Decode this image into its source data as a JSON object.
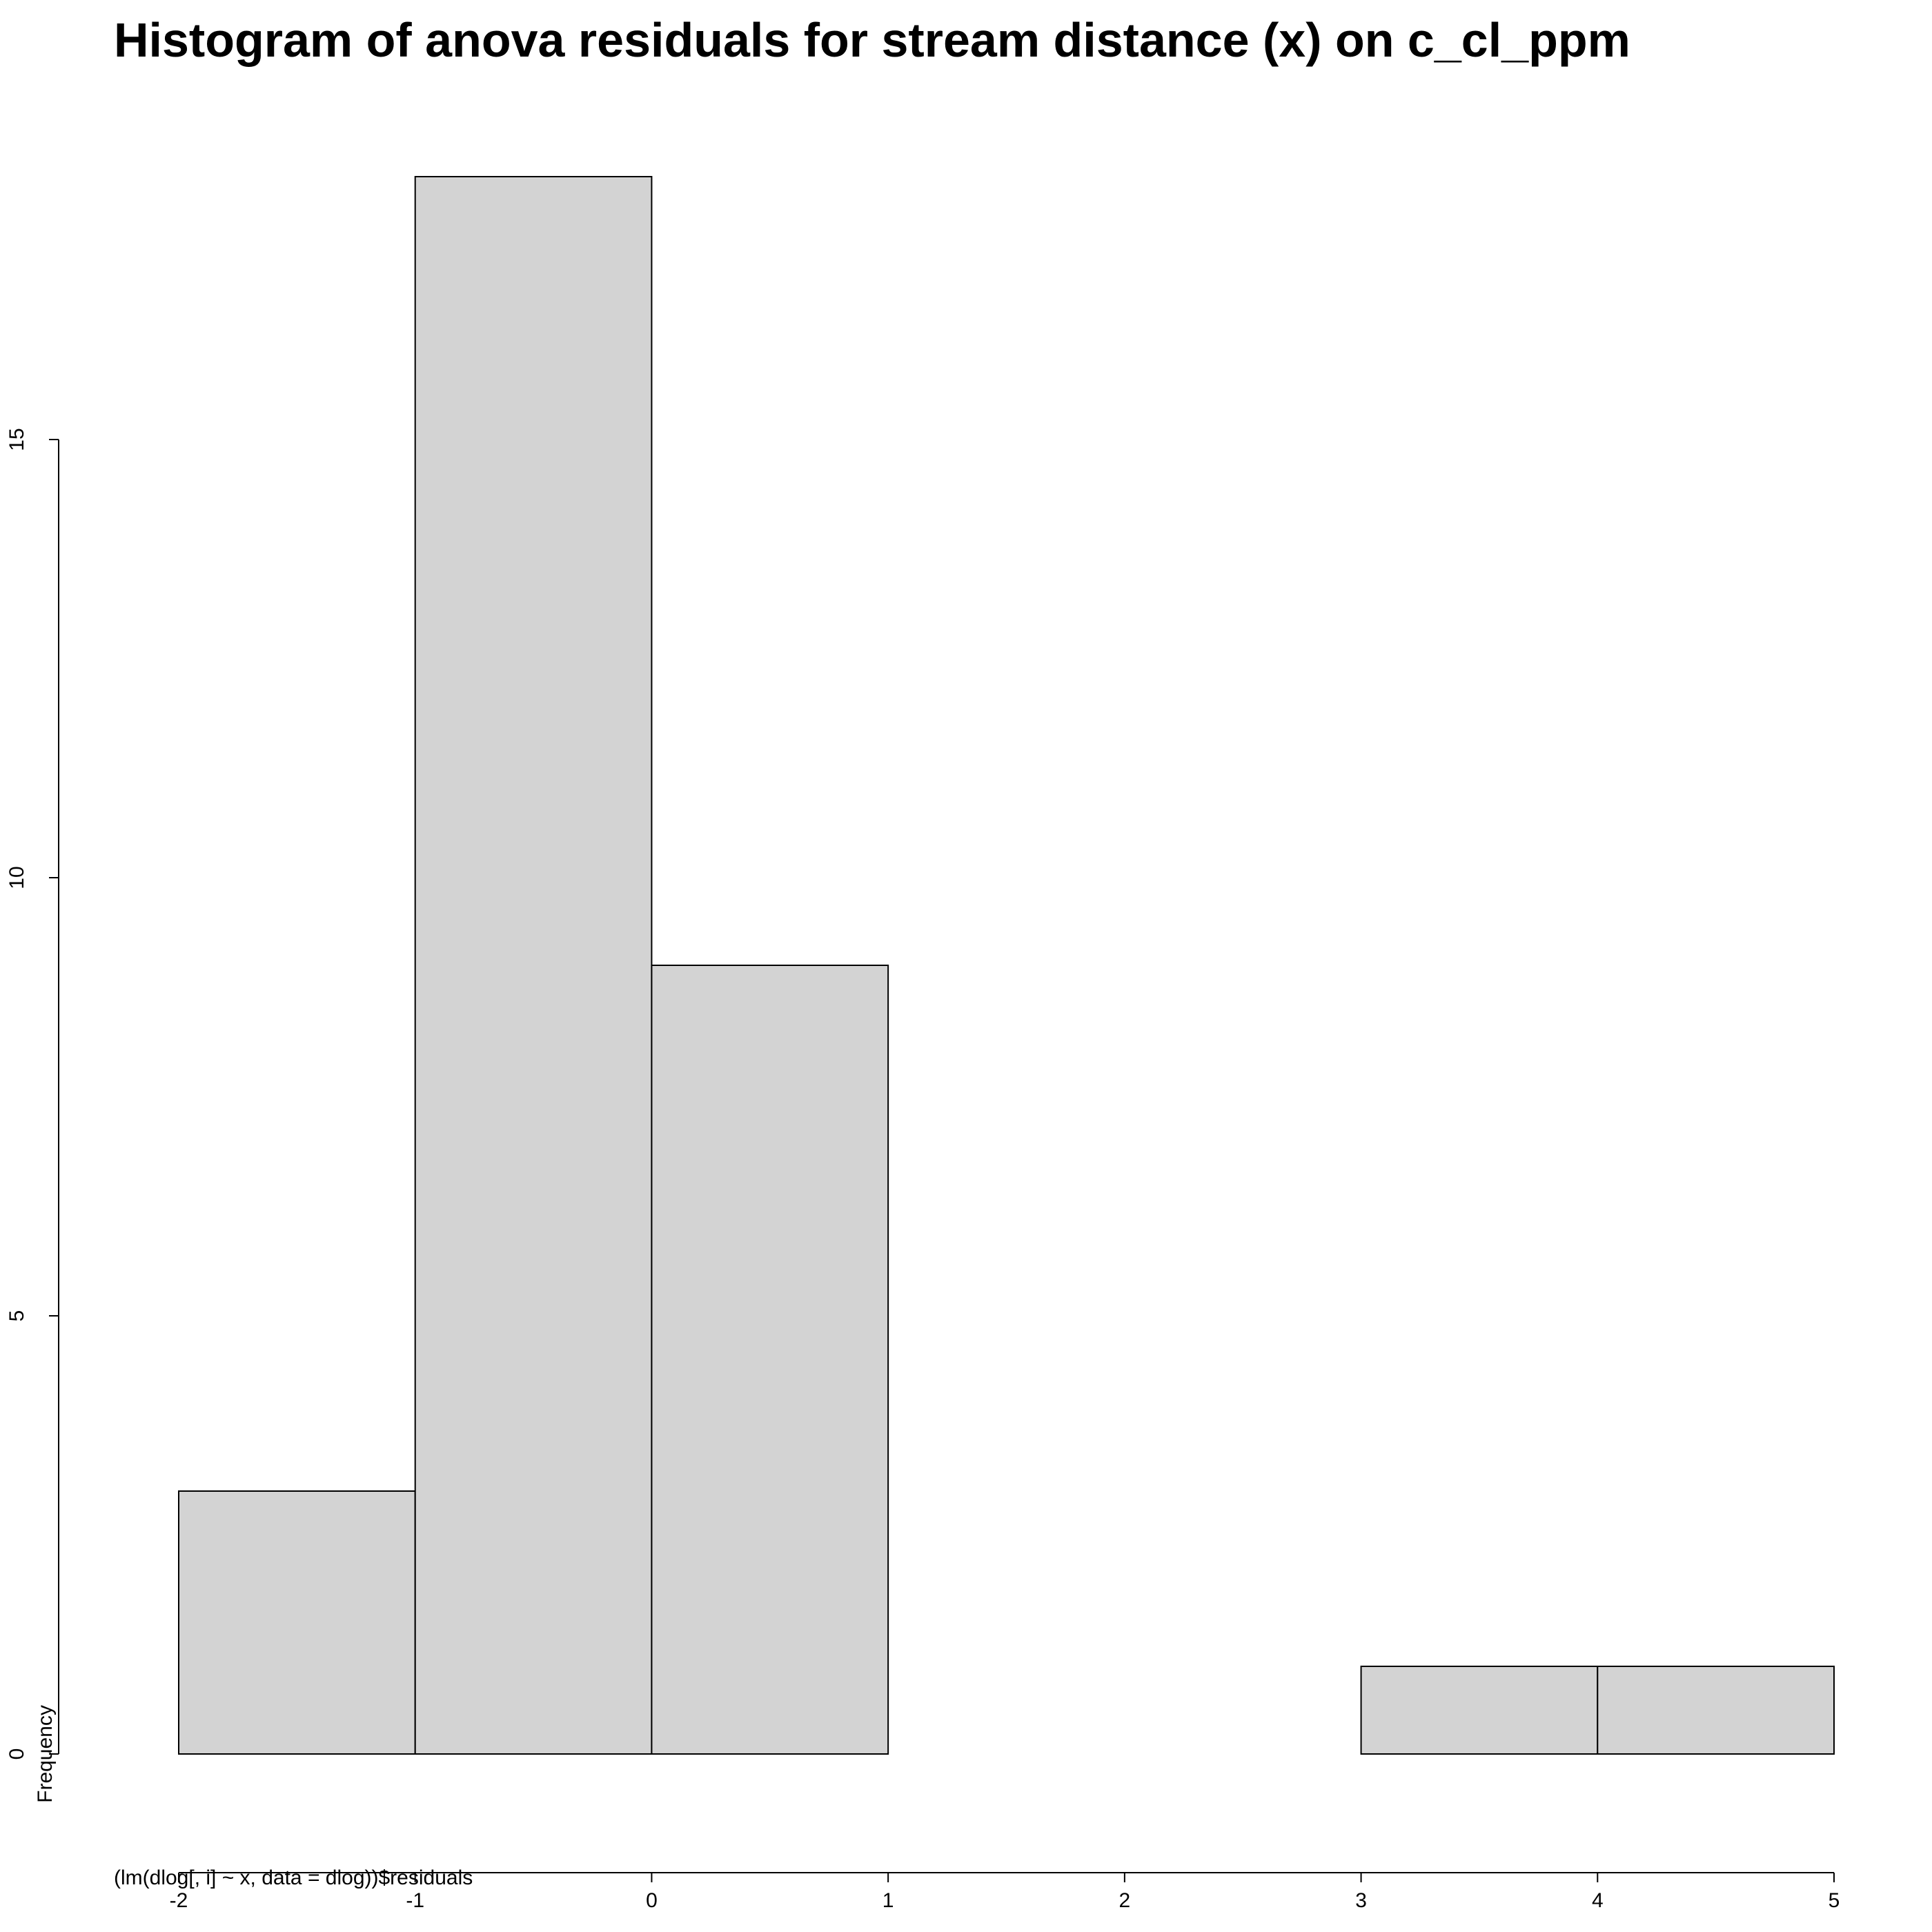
{
  "chart_data": {
    "type": "bar",
    "subtype": "histogram",
    "title": "Histogram of anova residuals for stream distance (x) on c_cl_ppm",
    "xlabel": "(lm(dlog[, i] ~ x, data = dlog))$residuals",
    "ylabel": "Frequency",
    "bins": [
      {
        "from": -2,
        "to": -1,
        "count": 3
      },
      {
        "from": -1,
        "to": 0,
        "count": 18
      },
      {
        "from": 0,
        "to": 1,
        "count": 9
      },
      {
        "from": 1,
        "to": 2,
        "count": 0
      },
      {
        "from": 2,
        "to": 3,
        "count": 0
      },
      {
        "from": 3,
        "to": 4,
        "count": 1
      },
      {
        "from": 4,
        "to": 5,
        "count": 1
      }
    ],
    "xlim": [
      -2,
      5
    ],
    "ylim": [
      0,
      18
    ],
    "x_ticks": [
      -2,
      -1,
      0,
      1,
      2,
      3,
      4,
      5
    ],
    "y_ticks": [
      0,
      5,
      10,
      15
    ],
    "bar_color": "#d3d3d3",
    "border_color": "#000000",
    "grid": false,
    "legend": "none"
  }
}
